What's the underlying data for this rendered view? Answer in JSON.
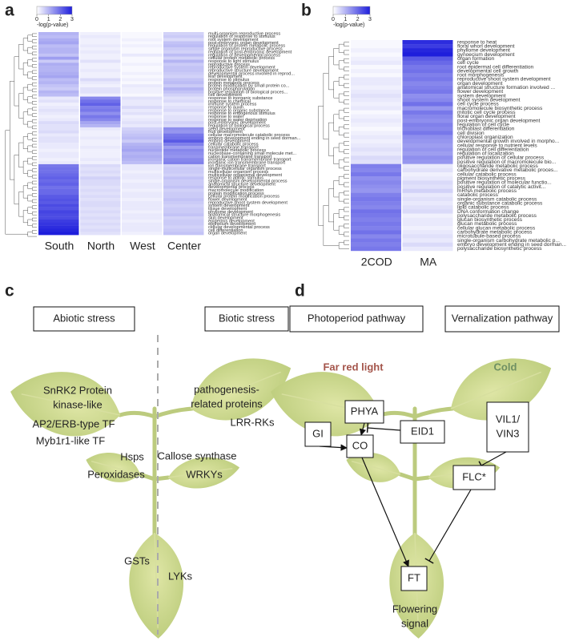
{
  "panel_a": {
    "letter": "a",
    "colorbar": {
      "title": "-log(p-value)",
      "range": [
        0,
        3
      ],
      "ticks": [
        0,
        1,
        2,
        3
      ]
    },
    "columns": [
      "South",
      "North",
      "West",
      "Center"
    ],
    "terms": [
      "multi-organism reproductive process",
      "regulation of response to stimulus",
      "root system development",
      "post-embryonic organ development",
      "regulation of protein metabolic process",
      "single organism reproductive process",
      "regulation of post-embryonic development",
      "regulation of developmental process",
      "cellular protein metabolic process",
      "response to light stimulus",
      "reproductive process",
      "reproductive system development",
      "reproductive structure development",
      "developmental process involved in reprod...",
      "leaf development",
      "response to stimulus",
      "protein metabolic process",
      "protein modification by small protein co...",
      "protein phosphorylation",
      "positive regulation of biological proces...",
      "cell development",
      "response to inorganic substance",
      "response to chemical",
      "immune system process",
      "response to auxin",
      "response to organic substance",
      "response to endogenous stimulus",
      "response to water",
      "response to water deprivation",
      "post-embryonic development",
      "regulation of biological process",
      "seed development",
      "fruit development",
      "cellular macromolecule catabolic process",
      "embryo development ending in seed dorman...",
      "embryo development",
      "cellular catabolic process",
      "transmembrane transport",
      "nucleotide metabolic process",
      "nucleobase-containing small molecule met...",
      "cation transmembrane transport",
      "inorganic cation transmembrane transport",
      "inorganic ion transmembrane transport",
      "ion transmembrane transport",
      "single-multicellular organism process",
      "multicellular organism process",
      "multicellular organismal development",
      "response to abiotic stimulus",
      "single-organism developmental process",
      "anatomical structure development",
      "developmental process",
      "macromolecule modification",
      "protein modification process",
      "cellular protein modification process",
      "flower development",
      "reproductive shoot system development",
      "system development",
      "tissue development",
      "phyllome development",
      "anatomical structure morphogenesis",
      "skin development",
      "epidermis development",
      "epithelium development",
      "cellular developmental process",
      "cell differentiation",
      "organ development",
      "shoot system development"
    ],
    "values": [
      [
        1.0,
        0.2,
        0.1,
        0.6
      ],
      [
        0.9,
        0.3,
        0.1,
        0.7
      ],
      [
        1.1,
        0.2,
        0.2,
        0.5
      ],
      [
        1.2,
        0.2,
        0.1,
        0.8
      ],
      [
        0.9,
        0.3,
        0.2,
        0.9
      ],
      [
        1.0,
        0.2,
        0.1,
        0.7
      ],
      [
        1.0,
        0.3,
        0.1,
        0.6
      ],
      [
        0.8,
        0.2,
        0.3,
        0.9
      ],
      [
        1.3,
        0.2,
        0.1,
        0.6
      ],
      [
        0.7,
        0.4,
        0.1,
        1.0
      ],
      [
        1.1,
        0.2,
        0.2,
        0.7
      ],
      [
        1.0,
        0.2,
        0.1,
        0.8
      ],
      [
        1.0,
        0.3,
        0.1,
        0.8
      ],
      [
        1.1,
        0.2,
        0.2,
        0.7
      ],
      [
        1.2,
        0.2,
        0.1,
        0.6
      ],
      [
        0.9,
        0.5,
        0.2,
        0.8
      ],
      [
        1.0,
        0.3,
        0.1,
        0.9
      ],
      [
        0.8,
        0.2,
        0.3,
        0.7
      ],
      [
        0.7,
        0.4,
        0.2,
        1.0
      ],
      [
        1.0,
        0.4,
        0.2,
        0.8
      ],
      [
        0.9,
        0.2,
        0.1,
        0.6
      ],
      [
        0.3,
        1.6,
        0.4,
        0.4
      ],
      [
        0.4,
        1.9,
        0.3,
        0.5
      ],
      [
        0.2,
        2.1,
        0.3,
        0.3
      ],
      [
        0.3,
        1.7,
        0.5,
        0.4
      ],
      [
        0.4,
        1.8,
        0.3,
        0.5
      ],
      [
        0.3,
        1.5,
        0.4,
        0.3
      ],
      [
        0.2,
        1.8,
        0.2,
        0.4
      ],
      [
        0.3,
        1.6,
        0.3,
        0.4
      ],
      [
        0.5,
        1.2,
        0.4,
        0.6
      ],
      [
        0.4,
        1.0,
        0.3,
        0.5
      ],
      [
        0.4,
        0.3,
        0.6,
        1.5
      ],
      [
        0.5,
        0.2,
        0.7,
        1.4
      ],
      [
        0.3,
        0.2,
        0.8,
        1.8
      ],
      [
        0.4,
        0.3,
        0.9,
        1.9
      ],
      [
        0.4,
        0.2,
        0.7,
        2.2
      ],
      [
        0.3,
        0.2,
        1.0,
        1.7
      ],
      [
        0.3,
        0.3,
        1.1,
        1.3
      ],
      [
        0.2,
        0.2,
        1.2,
        1.6
      ],
      [
        0.3,
        0.2,
        1.0,
        1.5
      ],
      [
        0.3,
        0.2,
        1.1,
        1.4
      ],
      [
        0.2,
        0.3,
        1.0,
        1.6
      ],
      [
        0.3,
        0.2,
        0.9,
        1.7
      ],
      [
        1.8,
        0.5,
        0.3,
        0.6
      ],
      [
        1.9,
        0.4,
        0.3,
        0.7
      ],
      [
        1.9,
        0.5,
        0.2,
        0.7
      ],
      [
        2.0,
        0.4,
        0.3,
        0.6
      ],
      [
        2.1,
        0.6,
        0.3,
        0.8
      ],
      [
        2.0,
        0.5,
        0.2,
        0.7
      ],
      [
        2.1,
        0.5,
        0.3,
        0.7
      ],
      [
        1.9,
        0.4,
        0.3,
        0.8
      ],
      [
        2.0,
        0.5,
        0.2,
        0.6
      ],
      [
        2.0,
        0.4,
        0.3,
        0.7
      ],
      [
        2.2,
        0.5,
        0.3,
        0.7
      ],
      [
        2.3,
        0.4,
        0.2,
        0.8
      ],
      [
        2.2,
        0.5,
        0.3,
        0.7
      ],
      [
        2.4,
        0.5,
        0.3,
        0.6
      ],
      [
        2.3,
        0.4,
        0.3,
        0.7
      ],
      [
        2.5,
        0.5,
        0.2,
        0.7
      ],
      [
        2.4,
        0.4,
        0.3,
        0.8
      ],
      [
        2.4,
        0.5,
        0.3,
        0.6
      ],
      [
        2.6,
        0.4,
        0.2,
        0.7
      ],
      [
        2.7,
        0.5,
        0.3,
        0.7
      ],
      [
        2.8,
        0.4,
        0.3,
        0.6
      ],
      [
        2.9,
        0.5,
        0.3,
        0.7
      ],
      [
        3.0,
        0.4,
        0.2,
        0.8
      ]
    ]
  },
  "panel_b": {
    "letter": "b",
    "colorbar": {
      "title": "-log(p-value)",
      "range": [
        0,
        3
      ],
      "ticks": [
        0,
        1,
        2,
        3
      ]
    },
    "columns": [
      "2COD",
      "MA"
    ],
    "terms": [
      "response to heat",
      "floral whorl development",
      "phyllome development",
      "gynoecium development",
      "organ formation",
      "cell cycle",
      "root epidermal cell differentiation",
      "developmental cell growth",
      "root morphogenesis",
      "reproductive shoot system development",
      "organ development",
      "anatomical structure formation involved ...",
      "flower development",
      "system development",
      "shoot system development",
      "cell cycle process",
      "macromolecule biosynthetic process",
      "mitotic cell cycle process",
      "floral organ development",
      "post-embryonic organ development",
      "regulation of cell cycle",
      "trichoblast differentiation",
      "cell division",
      "chloroplast organization",
      "developmental growth involved in morpho...",
      "cellular response to nutrient levels",
      "regulation of cell differentiation",
      "regulation of localization",
      "positive regulation of cellular process",
      "positive regulation of macromolecule bio...",
      "oligosaccharide metabolic process",
      "carbohydrate derivative metabolic proces...",
      "cellular catabolic process",
      "pigment biosynthetic process",
      "positive regulation of molecular functio...",
      "positive regulation of catalytic activit...",
      "mRNA metabolic process",
      "catabolic process",
      "single-organism catabolic process",
      "organic substance catabolic process",
      "lipid catabolic process",
      "DNA conformation change",
      "polysaccharide metabolic process",
      "glucan biosynthetic process",
      "glucan metabolic process",
      "cellular glucan metabolic process",
      "carbohydrate metabolic process",
      "microtubule-based process",
      "single-organism carbohydrate metabolic p...",
      "embryo development ending in seed dorman...",
      "polysaccharide biosynthetic process"
    ],
    "values": [
      [
        0.1,
        2.8
      ],
      [
        0.1,
        2.6
      ],
      [
        0.2,
        2.9
      ],
      [
        0.1,
        3.0
      ],
      [
        0.2,
        2.2
      ],
      [
        0.3,
        2.0
      ],
      [
        0.1,
        1.8
      ],
      [
        0.2,
        1.9
      ],
      [
        0.1,
        1.7
      ],
      [
        0.3,
        1.8
      ],
      [
        0.3,
        1.6
      ],
      [
        0.2,
        1.7
      ],
      [
        0.3,
        1.8
      ],
      [
        0.4,
        1.5
      ],
      [
        0.3,
        1.6
      ],
      [
        0.2,
        1.9
      ],
      [
        0.3,
        1.4
      ],
      [
        0.1,
        1.8
      ],
      [
        0.2,
        1.6
      ],
      [
        0.3,
        1.5
      ],
      [
        0.2,
        1.7
      ],
      [
        0.1,
        1.6
      ],
      [
        0.2,
        1.8
      ],
      [
        0.3,
        1.5
      ],
      [
        0.2,
        1.4
      ],
      [
        0.3,
        1.3
      ],
      [
        0.4,
        1.4
      ],
      [
        0.3,
        1.3
      ],
      [
        0.5,
        1.5
      ],
      [
        0.4,
        1.4
      ],
      [
        1.7,
        0.3
      ],
      [
        1.6,
        0.4
      ],
      [
        1.8,
        0.2
      ],
      [
        1.5,
        0.3
      ],
      [
        1.6,
        0.5
      ],
      [
        1.5,
        0.4
      ],
      [
        1.4,
        0.6
      ],
      [
        1.7,
        0.3
      ],
      [
        1.8,
        0.4
      ],
      [
        1.7,
        0.3
      ],
      [
        1.6,
        0.4
      ],
      [
        1.9,
        0.5
      ],
      [
        1.8,
        0.2
      ],
      [
        1.7,
        0.3
      ],
      [
        1.8,
        0.3
      ],
      [
        1.7,
        0.2
      ],
      [
        1.9,
        0.3
      ],
      [
        1.6,
        0.4
      ],
      [
        1.8,
        0.3
      ],
      [
        1.7,
        0.5
      ],
      [
        1.8,
        0.3
      ]
    ]
  },
  "panel_c": {
    "letter": "c",
    "headers": [
      "Abiotic stress",
      "Biotic stress"
    ],
    "labels": [
      [
        "SnRK2 Protein",
        "kinase-like"
      ],
      [
        "AP2/ERB-type TF"
      ],
      [
        "Myb1r1-like TF"
      ],
      [
        "Hsps"
      ],
      [
        "Peroxidases"
      ],
      [
        "GSTs"
      ],
      [
        "LYKs"
      ],
      [
        "pathogenesis-",
        "related proteins"
      ],
      [
        "LRR-RKs"
      ],
      [
        "Callose synthase"
      ],
      [
        "WRKYs"
      ]
    ]
  },
  "panel_d": {
    "letter": "d",
    "headers": [
      "Photoperiod pathway",
      "Vernalization pathway"
    ],
    "signals": [
      "Far red light",
      "Cold"
    ],
    "nodes": [
      [
        "GI"
      ],
      [
        "PHYA"
      ],
      [
        "EID1"
      ],
      [
        "CO"
      ],
      [
        "VIL1/",
        "VIN3"
      ],
      [
        "FLC*"
      ],
      [
        "FT"
      ]
    ],
    "outcome": [
      "Flowering",
      "signal"
    ]
  }
}
